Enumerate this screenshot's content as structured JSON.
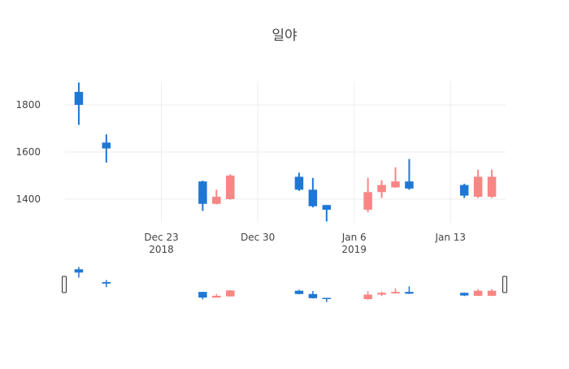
{
  "chart_data": {
    "type": "candlestick",
    "title": "일야",
    "xlabel": "",
    "ylabel": "",
    "x_range": [
      "2018-12-16",
      "2019-01-17"
    ],
    "ylim": [
      1300,
      1900
    ],
    "y_ticks": [
      1400,
      1600,
      1800
    ],
    "x_ticks": [
      {
        "date": "2018-12-23",
        "label": "Dec 23",
        "sublabel": "2018"
      },
      {
        "date": "2018-12-30",
        "label": "Dec 30",
        "sublabel": ""
      },
      {
        "date": "2019-01-06",
        "label": "Jan 6",
        "sublabel": "2019"
      },
      {
        "date": "2019-01-13",
        "label": "Jan 13",
        "sublabel": ""
      }
    ],
    "colors": {
      "decreasing": "#1f77d4",
      "increasing": "#f98585"
    },
    "rangeslider": true,
    "data": [
      {
        "date": "2018-12-17",
        "open": 1855,
        "high": 1895,
        "low": 1715,
        "close": 1800
      },
      {
        "date": "2018-12-19",
        "open": 1640,
        "high": 1675,
        "low": 1555,
        "close": 1615
      },
      {
        "date": "2018-12-26",
        "open": 1475,
        "high": 1478,
        "low": 1350,
        "close": 1380
      },
      {
        "date": "2018-12-27",
        "open": 1380,
        "high": 1440,
        "low": 1378,
        "close": 1410
      },
      {
        "date": "2018-12-28",
        "open": 1400,
        "high": 1505,
        "low": 1398,
        "close": 1500
      },
      {
        "date": "2019-01-02",
        "open": 1495,
        "high": 1512,
        "low": 1435,
        "close": 1440
      },
      {
        "date": "2019-01-03",
        "open": 1440,
        "high": 1490,
        "low": 1365,
        "close": 1370
      },
      {
        "date": "2019-01-04",
        "open": 1375,
        "high": 1375,
        "low": 1305,
        "close": 1355
      },
      {
        "date": "2019-01-07",
        "open": 1355,
        "high": 1490,
        "low": 1345,
        "close": 1430
      },
      {
        "date": "2019-01-08",
        "open": 1430,
        "high": 1480,
        "low": 1405,
        "close": 1460
      },
      {
        "date": "2019-01-09",
        "open": 1450,
        "high": 1535,
        "low": 1448,
        "close": 1475
      },
      {
        "date": "2019-01-10",
        "open": 1475,
        "high": 1570,
        "low": 1440,
        "close": 1445
      },
      {
        "date": "2019-01-14",
        "open": 1460,
        "high": 1465,
        "low": 1405,
        "close": 1415
      },
      {
        "date": "2019-01-15",
        "open": 1410,
        "high": 1525,
        "low": 1405,
        "close": 1495
      },
      {
        "date": "2019-01-16",
        "open": 1410,
        "high": 1525,
        "low": 1405,
        "close": 1495
      }
    ]
  }
}
